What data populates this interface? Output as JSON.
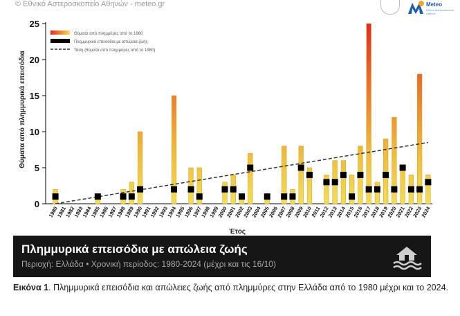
{
  "header": {
    "credit": "© Εθνικό Αστεροσκοπείο Αθηνών - meteo.gr",
    "logo_text": "Meteo",
    "logo_subtext": "Εθνικό Αστεροσκοπείο Αθηνών"
  },
  "colors": {
    "bar_low": "#f3dc55",
    "bar_high": "#e02a20",
    "marker": "#000000",
    "trend": "#333333",
    "banner_bg": "#161616"
  },
  "chart_data": {
    "type": "bar",
    "title": "",
    "xlabel": "Έτος",
    "ylabel": "Θύματα από πλημμυρικά επεισόδια",
    "ylim": [
      0,
      25
    ],
    "yticks": [
      0,
      5,
      10,
      15,
      20,
      25
    ],
    "grid": false,
    "legend_position": "top-left",
    "legend": [
      "Θύματα από πλημμύρες από το 1980",
      "Πλημμυρικά επεισόδια με απώλεια ζωής",
      "Τάση (θύματα από πλημμύρες από το 1980)"
    ],
    "categories": [
      "1980",
      "1981",
      "1982",
      "1983",
      "1984",
      "1985",
      "1986",
      "1987",
      "1988",
      "1989",
      "1990",
      "1991",
      "1992",
      "1993",
      "1994",
      "1995",
      "1996",
      "1997",
      "1998",
      "1999",
      "2000",
      "2001",
      "2002",
      "2003",
      "2004",
      "2005",
      "2006",
      "2007",
      "2008",
      "2009",
      "2010",
      "2011",
      "2012",
      "2013",
      "2014",
      "2015",
      "2016",
      "2017",
      "2018",
      "2019",
      "2020",
      "2021",
      "2022",
      "2023",
      "2024"
    ],
    "series": [
      {
        "name": "Θύματα από πλημμύρες από το 1980",
        "values": [
          2,
          0,
          0,
          0,
          0,
          1,
          0,
          0,
          2,
          3,
          10,
          0,
          0,
          0,
          15,
          0,
          5,
          5,
          0,
          0,
          3,
          4,
          1,
          7,
          0,
          1,
          0,
          8,
          2,
          8,
          5,
          0,
          4,
          6,
          6,
          4,
          8,
          25,
          3,
          9,
          12,
          5,
          4,
          18,
          4
        ]
      },
      {
        "name": "Πλημμυρικά επεισόδια με απώλεια ζωής",
        "values": [
          1,
          0,
          0,
          0,
          0,
          1,
          0,
          0,
          1,
          1,
          2,
          0,
          0,
          0,
          2,
          0,
          2,
          1,
          0,
          0,
          2,
          2,
          1,
          5,
          0,
          1,
          0,
          1,
          1,
          5,
          4,
          0,
          3,
          3,
          4,
          1,
          4,
          2,
          2,
          4,
          2,
          5,
          2,
          2,
          3
        ]
      }
    ],
    "trend": {
      "start": [
        1980,
        0
      ],
      "end": [
        2024,
        8.5
      ]
    }
  },
  "banner": {
    "title": "Πλημμυρικά επεισόδια με απώλεια ζωής",
    "subtitle": "Περιοχή: Ελλάδα • Χρονική περίοδος: 1980-2024 (μέχρι και τις 16/10)",
    "icon": "flooded-house-icon"
  },
  "caption": {
    "label": "Εικόνα 1",
    "text": ". Πλημμυρικά επεισόδια και απώλειες ζωής από πλημμύρες στην Ελλάδα από το 1980 μέχρι και το 2024."
  }
}
